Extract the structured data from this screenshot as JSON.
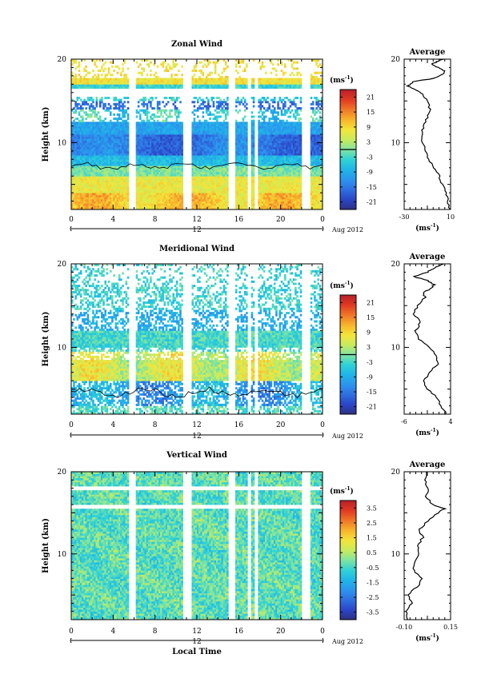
{
  "colors": {
    "colormap": [
      "#303080",
      "#2a45c8",
      "#2f6ee0",
      "#2c95ef",
      "#1fb4e8",
      "#2fd2d6",
      "#7fe3a4",
      "#c8ec5c",
      "#f4e53a",
      "#f8b42c",
      "#f07828",
      "#e23a22",
      "#b8202a"
    ]
  },
  "chart_data": [
    {
      "type": "heatmap",
      "title": "Zonal Wind",
      "ylabel": "Height (km)",
      "ylim": [
        2,
        20
      ],
      "yticks": [
        "10",
        "20"
      ],
      "xlim": [
        0,
        24
      ],
      "xticks": [
        "0",
        "4",
        "8",
        "12",
        "16",
        "20",
        "0"
      ],
      "date_label": "12",
      "date_suffix": "Aug 2012",
      "colorbar": {
        "unit": "(ms",
        "unit_sup": "-1",
        "unit_close": ")",
        "vmin": -24,
        "vmax": 24,
        "ticks": [
          21,
          15,
          9,
          3,
          -3,
          -9,
          -15,
          -21
        ],
        "zero_line": true
      },
      "average_profile": {
        "title": "Average",
        "xlim": [
          -30,
          10
        ],
        "xticks": [
          "-30",
          "10"
        ],
        "ylim": [
          2,
          20
        ],
        "yticks": [
          "10",
          "20"
        ],
        "xlabel": "(ms",
        "xlabel_sup": "-1",
        "xlabel_close": ")",
        "points": [
          [
            9,
            2
          ],
          [
            8,
            3
          ],
          [
            6,
            4
          ],
          [
            3,
            5
          ],
          [
            0,
            6
          ],
          [
            -4,
            7
          ],
          [
            -9,
            8
          ],
          [
            -12,
            9
          ],
          [
            -14,
            10
          ],
          [
            -15,
            11
          ],
          [
            -13,
            12
          ],
          [
            -10,
            13
          ],
          [
            -8,
            14
          ],
          [
            -10,
            15
          ],
          [
            -14,
            15.8
          ],
          [
            -20,
            16.3
          ],
          [
            -27,
            16.8
          ],
          [
            -22,
            17.3
          ],
          [
            -5,
            17.7
          ],
          [
            2,
            18.1
          ],
          [
            5,
            18.6
          ],
          [
            -1,
            19
          ],
          [
            -6,
            19.4
          ],
          [
            -2,
            19.7
          ],
          [
            4,
            20
          ]
        ]
      },
      "data_gaps_hours": [
        [
          5.5,
          6.2
        ],
        [
          10.7,
          11.5
        ],
        [
          15,
          15.7
        ],
        [
          16.8,
          17.2
        ],
        [
          17.5,
          17.9
        ],
        [
          22,
          22.8
        ]
      ],
      "data_top_km": 17.8
    },
    {
      "type": "heatmap",
      "title": "Meridional Wind",
      "ylabel": "Height (km)",
      "ylim": [
        2,
        20
      ],
      "yticks": [
        "10",
        "20"
      ],
      "xlim": [
        0,
        24
      ],
      "xticks": [
        "0",
        "4",
        "8",
        "12",
        "16",
        "20",
        "0"
      ],
      "date_label": "12",
      "date_suffix": "Aug 2012",
      "colorbar": {
        "unit": "(ms",
        "unit_sup": "-1",
        "unit_close": ")",
        "vmin": -24,
        "vmax": 24,
        "ticks": [
          21,
          15,
          9,
          3,
          -3,
          -9,
          -15,
          -21
        ],
        "zero_line": true
      },
      "average_profile": {
        "title": "Average",
        "xlim": [
          -6,
          4
        ],
        "xticks": [
          "-6",
          "4"
        ],
        "ylim": [
          2,
          20
        ],
        "yticks": [
          "10",
          "20"
        ],
        "xlabel": "(ms",
        "xlabel_sup": "-1",
        "xlabel_close": ")",
        "points": [
          [
            3,
            2
          ],
          [
            2,
            3
          ],
          [
            1,
            4
          ],
          [
            -1,
            5
          ],
          [
            -1.8,
            6
          ],
          [
            -0.5,
            7
          ],
          [
            1.2,
            8
          ],
          [
            1,
            9
          ],
          [
            -0.5,
            10
          ],
          [
            -2.8,
            11
          ],
          [
            -3.5,
            12
          ],
          [
            -2.5,
            13
          ],
          [
            -4,
            14
          ],
          [
            -3,
            15
          ],
          [
            -1.5,
            16
          ],
          [
            -2,
            16.5
          ],
          [
            -0.5,
            17
          ],
          [
            0.5,
            17.5
          ],
          [
            -1,
            18
          ],
          [
            -4,
            18.5
          ],
          [
            -1,
            19
          ],
          [
            0.5,
            19.5
          ],
          [
            2.5,
            20
          ]
        ]
      },
      "data_gaps_hours": [
        [
          5.5,
          6.2
        ],
        [
          10.7,
          11.5
        ],
        [
          15,
          15.7
        ],
        [
          16.8,
          17.2
        ],
        [
          17.5,
          17.9
        ],
        [
          22,
          22.8
        ]
      ],
      "data_top_km": 17.5
    },
    {
      "type": "heatmap",
      "title": "Vertical Wind",
      "ylabel": "Height (km)",
      "ylim": [
        2,
        20
      ],
      "yticks": [
        "10",
        "20"
      ],
      "xlim": [
        0,
        24
      ],
      "xticks": [
        "0",
        "4",
        "8",
        "12",
        "16",
        "20",
        "0"
      ],
      "date_label": "12",
      "date_suffix": "Aug 2012",
      "xlabel": "Local Time",
      "colorbar": {
        "unit": "(ms",
        "unit_sup": "-1",
        "unit_close": ")",
        "vmin": -4,
        "vmax": 4,
        "ticks": [
          "3.5",
          "2.5",
          "1.5",
          "0.5",
          "-0.5",
          "-1.5",
          "-2.5",
          "-3.5"
        ],
        "zero_line": false
      },
      "average_profile": {
        "title": "Average",
        "xlim": [
          -0.1,
          0.15
        ],
        "xticks": [
          "-0.10",
          "0.15"
        ],
        "ylim": [
          2,
          20
        ],
        "yticks": [
          "10",
          "20"
        ],
        "xlabel": "(ms",
        "xlabel_sup": "-1",
        "xlabel_close": ")",
        "points": [
          [
            -0.08,
            2
          ],
          [
            -0.09,
            3
          ],
          [
            -0.06,
            4
          ],
          [
            -0.08,
            5
          ],
          [
            -0.03,
            6
          ],
          [
            0.0,
            7
          ],
          [
            -0.05,
            8
          ],
          [
            -0.04,
            9
          ],
          [
            -0.02,
            10
          ],
          [
            -0.03,
            11
          ],
          [
            0.0,
            12
          ],
          [
            -0.02,
            13
          ],
          [
            0.03,
            14
          ],
          [
            0.08,
            15
          ],
          [
            0.12,
            15.5
          ],
          [
            0.05,
            16
          ],
          [
            0.02,
            17
          ],
          [
            0.03,
            18
          ],
          [
            0.01,
            19
          ],
          [
            0.02,
            20
          ]
        ]
      },
      "data_gaps_hours": [
        [
          5.5,
          6.2
        ],
        [
          10.7,
          11.5
        ],
        [
          15,
          15.7
        ],
        [
          16.8,
          17.2
        ],
        [
          17.5,
          17.9
        ],
        [
          22,
          22.8
        ]
      ],
      "data_top_km": 20
    }
  ]
}
